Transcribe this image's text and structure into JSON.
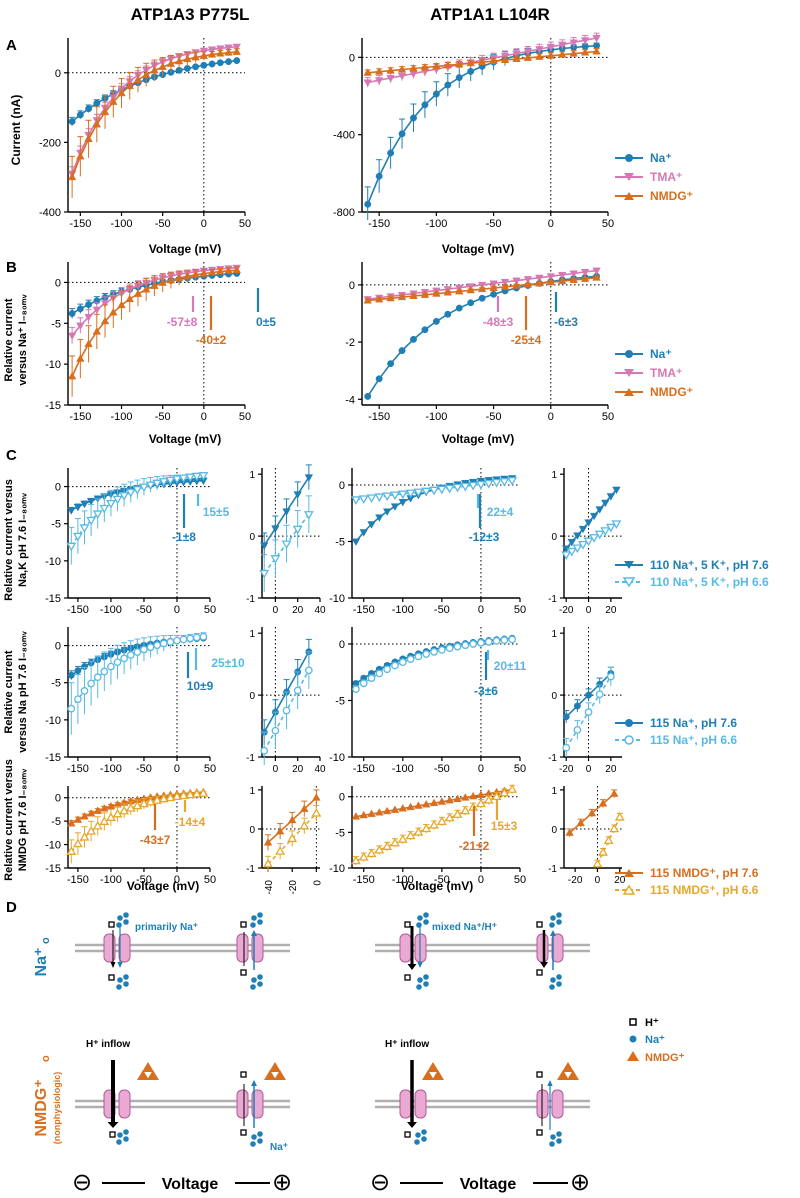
{
  "colors": {
    "na": "#1f7fb5",
    "na_light": "#58b9e3",
    "tma": "#d678b4",
    "nmdg": "#d86f1f",
    "nmdg_light": "#e6a82a",
    "axis": "#000000",
    "membrane": "#b0b0b0",
    "channel": "#e9a9d2"
  },
  "headers": {
    "left": "ATP1A3 P775L",
    "right": "ATP1A1 L104R"
  },
  "panels": {
    "A": "A",
    "B": "B",
    "C": "C",
    "D": "D"
  },
  "ylabels": {
    "A": "Current (nA)",
    "B": [
      "Relative current",
      "versus Na⁺ I₋₈₀ₘᵥ"
    ],
    "C1": [
      "Relative current versus",
      "Na,K pH 7.6 I₋₈₀ₘᵥ"
    ],
    "C2": [
      "Relative current",
      "versus Na pH 7.6 I₋₈₀ₘᵥ"
    ],
    "C3": [
      "Relative current versus",
      "NMDG pH 7.6 I₋₈₀ₘᵥ"
    ]
  },
  "xlabel": "Voltage (mV)",
  "legends": {
    "A": [
      "Na⁺",
      "TMA⁺",
      "NMDG⁺"
    ],
    "C1": [
      "110 Na⁺, 5 K⁺, pH 7.6",
      "110 Na⁺, 5 K⁺, pH 6.6"
    ],
    "C2": [
      "115 Na⁺, pH 7.6",
      "115 Na⁺, pH 6.6"
    ],
    "C3": [
      "115 NMDG⁺, pH 7.6",
      "115 NMDG⁺, pH 6.6"
    ]
  },
  "annotations": {
    "B_left": [
      "-57±8",
      "-40±2",
      "0±5"
    ],
    "B_right": [
      "-48±3",
      "-25±4",
      "-6±3"
    ],
    "C1_left": [
      "15±5",
      "-1±8"
    ],
    "C1_right": [
      "22±4",
      "-12±3"
    ],
    "C2_left": [
      "25±10",
      "10±9"
    ],
    "C2_right": [
      "20±11",
      "-3±6"
    ],
    "C3_left": [
      "-43±7",
      "-14±4"
    ],
    "C3_right": [
      "-21±2",
      "15±3"
    ]
  },
  "diagram": {
    "na_label": "Na⁺",
    "na_sub": "o",
    "nmdg_label": "NMDG⁺",
    "nmdg_sub": "o",
    "nonphys": "(nonphysiologic)",
    "primarily": "primarily Na⁺",
    "mixed": "mixed Na⁺/H⁺",
    "h_inflow": "H⁺ inflow",
    "na_small": "Na⁺",
    "voltage": "Voltage",
    "minus": "⊖",
    "plus": "⊕",
    "legend_h": "H⁺",
    "legend_na": "Na⁺",
    "legend_nmdg": "NMDG⁺"
  },
  "chart_data": [
    {
      "id": "A_left",
      "type": "line",
      "xlabel": "Voltage (mV)",
      "ylabel": "Current (nA)",
      "xlim": [
        -165,
        50
      ],
      "ylim": [
        -400,
        100
      ],
      "xticks": [
        -150,
        -100,
        -50,
        0,
        50
      ],
      "yticks": [
        -400,
        -200,
        0
      ],
      "series": [
        {
          "name": "Na⁺",
          "color": "na",
          "marker": "circle",
          "x0": -160,
          "dx": 10,
          "n": 21,
          "shape": "exp",
          "y0": -140,
          "y1": 35,
          "k": 2.0,
          "err": 12
        },
        {
          "name": "TMA⁺",
          "color": "tma",
          "marker": "tri-down",
          "x0": -160,
          "dx": 10,
          "n": 21,
          "shape": "exp",
          "y0": -290,
          "y1": 75,
          "k": 3.5,
          "err": 20
        },
        {
          "name": "NMDG⁺",
          "color": "nmdg",
          "marker": "tri-up",
          "x0": -160,
          "dx": 10,
          "n": 21,
          "shape": "exp",
          "y0": -300,
          "y1": 60,
          "k": 3.5,
          "err": 60
        }
      ]
    },
    {
      "id": "A_right",
      "type": "line",
      "xlabel": "Voltage (mV)",
      "ylabel": "",
      "xlim": [
        -165,
        50
      ],
      "ylim": [
        -800,
        100
      ],
      "xticks": [
        -150,
        -100,
        -50,
        0,
        50
      ],
      "yticks": [
        -800,
        -400,
        0
      ],
      "series": [
        {
          "name": "Na⁺",
          "color": "na",
          "marker": "circle",
          "x0": -160,
          "dx": 10,
          "n": 21,
          "shape": "exp",
          "y0": -760,
          "y1": 60,
          "k": 3.8,
          "err": 90
        },
        {
          "name": "TMA⁺",
          "color": "tma",
          "marker": "tri-down",
          "x0": -160,
          "dx": 10,
          "n": 21,
          "shape": "lin",
          "y0": -130,
          "y1": 100,
          "err": 25
        },
        {
          "name": "NMDG⁺",
          "color": "nmdg",
          "marker": "tri-up",
          "x0": -160,
          "dx": 10,
          "n": 21,
          "shape": "lin",
          "y0": -80,
          "y1": 30,
          "err": 15
        }
      ]
    },
    {
      "id": "B_left",
      "type": "line",
      "xlabel": "Voltage (mV)",
      "ylabel": "Relative current versus Na⁺ I-80mV",
      "xlim": [
        -165,
        50
      ],
      "ylim": [
        -15,
        2.5
      ],
      "xticks": [
        -150,
        -100,
        -50,
        0,
        50
      ],
      "yticks": [
        -15,
        -10,
        -5,
        0
      ],
      "series": [
        {
          "name": "Na⁺",
          "color": "na",
          "marker": "circle",
          "x0": -160,
          "dx": 10,
          "n": 21,
          "shape": "exp",
          "y0": -3.8,
          "y1": 1.1,
          "k": 2.2,
          "err": 0.6
        },
        {
          "name": "TMA⁺",
          "color": "tma",
          "marker": "tri-down",
          "x0": -160,
          "dx": 10,
          "n": 21,
          "shape": "exp",
          "y0": -6.5,
          "y1": 1.8,
          "k": 3,
          "err": 1
        },
        {
          "name": "NMDG⁺",
          "color": "nmdg",
          "marker": "tri-up",
          "x0": -160,
          "dx": 10,
          "n": 21,
          "shape": "exp",
          "y0": -11.5,
          "y1": 1.5,
          "k": 3.5,
          "err": 2.5
        }
      ]
    },
    {
      "id": "B_right",
      "type": "line",
      "xlabel": "Voltage (mV)",
      "ylabel": "",
      "xlim": [
        -165,
        50
      ],
      "ylim": [
        -4.2,
        0.8
      ],
      "xticks": [
        -150,
        -100,
        -50,
        0,
        50
      ],
      "yticks": [
        -4,
        -2,
        0
      ],
      "series": [
        {
          "name": "Na⁺",
          "color": "na",
          "marker": "circle",
          "x0": -160,
          "dx": 10,
          "n": 21,
          "shape": "exp",
          "y0": -3.9,
          "y1": 0.3,
          "k": 3,
          "err": 0.05
        },
        {
          "name": "TMA⁺",
          "color": "tma",
          "marker": "tri-down",
          "x0": -160,
          "dx": 10,
          "n": 21,
          "shape": "lin",
          "y0": -0.5,
          "y1": 0.5,
          "err": 0.08
        },
        {
          "name": "NMDG⁺",
          "color": "nmdg",
          "marker": "tri-up",
          "x0": -160,
          "dx": 10,
          "n": 21,
          "shape": "lin",
          "y0": -0.55,
          "y1": 0.25,
          "err": 0.05
        }
      ]
    },
    {
      "id": "C1_left",
      "type": "line",
      "xlim": [
        -165,
        50
      ],
      "ylim": [
        -15,
        2.5
      ],
      "xticks": [
        -150,
        -100,
        -50,
        0,
        50
      ],
      "yticks": [
        -15,
        -10,
        -5,
        0
      ],
      "series": [
        {
          "name": "pH 7.6",
          "color": "na",
          "marker": "tri-down",
          "x0": -160,
          "dx": 10,
          "n": 21,
          "shape": "exp",
          "y0": -3.2,
          "y1": 0.8,
          "k": 2.2,
          "err": 0.4
        },
        {
          "name": "pH 6.6",
          "color": "na_light",
          "marker": "tri-down-open",
          "x0": -160,
          "dx": 10,
          "n": 21,
          "shape": "exp",
          "y0": -8,
          "y1": 1.5,
          "k": 2.8,
          "err": 2.5
        }
      ]
    },
    {
      "id": "C1_left_zoom",
      "type": "line",
      "xlim": [
        -12,
        40
      ],
      "ylim": [
        -1,
        1.1
      ],
      "xticks": [
        0,
        20,
        40
      ],
      "yticks": [
        -1,
        0,
        1
      ],
      "series": [
        {
          "name": "pH 7.6",
          "color": "na",
          "marker": "tri-down",
          "x0": -10,
          "dx": 10,
          "n": 5,
          "shape": "lin",
          "y0": -0.15,
          "y1": 0.95,
          "err": 0.2
        },
        {
          "name": "pH 6.6",
          "color": "na_light",
          "marker": "tri-down-open",
          "x0": -10,
          "dx": 10,
          "n": 5,
          "shape": "lin",
          "y0": -0.6,
          "y1": 0.35,
          "err": 0.3
        }
      ]
    },
    {
      "id": "C1_right",
      "type": "line",
      "xlim": [
        -165,
        50
      ],
      "ylim": [
        -10,
        1.5
      ],
      "xticks": [
        -150,
        -100,
        -50,
        0,
        50
      ],
      "yticks": [
        -10,
        -5,
        0
      ],
      "series": [
        {
          "name": "pH 7.6",
          "color": "na",
          "marker": "tri-down",
          "x0": -160,
          "dx": 10,
          "n": 21,
          "shape": "exp",
          "y0": -5,
          "y1": 0.6,
          "k": 3,
          "err": 0.05
        },
        {
          "name": "pH 6.6",
          "color": "na_light",
          "marker": "tri-down-open",
          "x0": -160,
          "dx": 10,
          "n": 21,
          "shape": "lin",
          "y0": -1.3,
          "y1": 0.4,
          "err": 0.1
        }
      ]
    },
    {
      "id": "C1_right_zoom",
      "type": "line",
      "xlim": [
        -22,
        30
      ],
      "ylim": [
        -1,
        1.1
      ],
      "xticks": [
        -20,
        0,
        20
      ],
      "yticks": [
        -1,
        0,
        1
      ],
      "series": [
        {
          "name": "pH 7.6",
          "color": "na",
          "marker": "tri-down",
          "x0": -20,
          "dx": 5,
          "n": 10,
          "shape": "lin",
          "y0": -0.2,
          "y1": 0.75,
          "err": 0.03
        },
        {
          "name": "pH 6.6",
          "color": "na_light",
          "marker": "tri-down-open",
          "x0": -20,
          "dx": 5,
          "n": 10,
          "shape": "lin",
          "y0": -0.3,
          "y1": 0.2,
          "err": 0.03
        }
      ]
    },
    {
      "id": "C2_left",
      "type": "line",
      "xlim": [
        -165,
        50
      ],
      "ylim": [
        -15,
        2.5
      ],
      "xticks": [
        -150,
        -100,
        -50,
        0,
        50
      ],
      "yticks": [
        -15,
        -10,
        -5,
        0
      ],
      "series": [
        {
          "name": "pH 7.6",
          "color": "na",
          "marker": "circle",
          "x0": -160,
          "dx": 10,
          "n": 21,
          "shape": "exp",
          "y0": -4,
          "y1": 1,
          "k": 2.4,
          "err": 0.6
        },
        {
          "name": "pH 6.6",
          "color": "na_light",
          "marker": "circle-open",
          "x0": -160,
          "dx": 10,
          "n": 21,
          "shape": "exp",
          "y0": -8.5,
          "y1": 1.2,
          "k": 2.6,
          "err": 3.5
        }
      ]
    },
    {
      "id": "C2_left_zoom",
      "type": "line",
      "xlim": [
        -12,
        40
      ],
      "ylim": [
        -1,
        1.1
      ],
      "xticks": [
        0,
        20,
        40
      ],
      "yticks": [
        -1,
        0,
        1
      ],
      "series": [
        {
          "name": "pH 7.6",
          "color": "na",
          "marker": "circle",
          "x0": -10,
          "dx": 10,
          "n": 5,
          "shape": "lin",
          "y0": -0.6,
          "y1": 0.7,
          "err": 0.2
        },
        {
          "name": "pH 6.6",
          "color": "na_light",
          "marker": "circle-open",
          "x0": -10,
          "dx": 10,
          "n": 5,
          "shape": "lin",
          "y0": -0.9,
          "y1": 0.4,
          "err": 0.3
        }
      ]
    },
    {
      "id": "C2_right",
      "type": "line",
      "xlim": [
        -165,
        50
      ],
      "ylim": [
        -10,
        1.5
      ],
      "xticks": [
        -150,
        -100,
        -50,
        0,
        50
      ],
      "yticks": [
        -10,
        -5,
        0
      ],
      "series": [
        {
          "name": "pH 7.6",
          "color": "na",
          "marker": "circle",
          "x0": -160,
          "dx": 10,
          "n": 21,
          "shape": "exp",
          "y0": -3.5,
          "y1": 0.5,
          "k": 2.2,
          "err": 0.2
        },
        {
          "name": "pH 6.6",
          "color": "na_light",
          "marker": "circle-open",
          "x0": -160,
          "dx": 10,
          "n": 21,
          "shape": "exp",
          "y0": -4,
          "y1": 0.4,
          "k": 2.2,
          "err": 0.3
        }
      ]
    },
    {
      "id": "C2_right_zoom",
      "type": "line",
      "xlim": [
        -22,
        30
      ],
      "ylim": [
        -1,
        1.1
      ],
      "xticks": [
        -20,
        0,
        20
      ],
      "yticks": [
        -1,
        0,
        1
      ],
      "series": [
        {
          "name": "pH 7.6",
          "color": "na",
          "marker": "circle",
          "x0": -20,
          "dx": 10,
          "n": 5,
          "shape": "lin",
          "y0": -0.35,
          "y1": 0.35,
          "err": 0.1
        },
        {
          "name": "pH 6.6",
          "color": "na_light",
          "marker": "circle-open",
          "x0": -20,
          "dx": 10,
          "n": 5,
          "shape": "lin",
          "y0": -0.85,
          "y1": 0.3,
          "err": 0.15
        }
      ]
    },
    {
      "id": "C3_left",
      "type": "line",
      "xlim": [
        -165,
        50
      ],
      "ylim": [
        -15,
        2.5
      ],
      "xticks": [
        -150,
        -100,
        -50,
        0,
        50
      ],
      "yticks": [
        -15,
        -10,
        -5,
        0
      ],
      "series": [
        {
          "name": "pH 7.6",
          "color": "nmdg",
          "marker": "tri-up",
          "x0": -160,
          "dx": 10,
          "n": 21,
          "shape": "exp",
          "y0": -5.5,
          "y1": 1.2,
          "k": 2.2,
          "err": 0.6
        },
        {
          "name": "pH 6.6",
          "color": "nmdg_light",
          "marker": "tri-up-open",
          "x0": -160,
          "dx": 10,
          "n": 21,
          "shape": "exp",
          "y0": -11.5,
          "y1": 0.9,
          "k": 2.6,
          "err": 2.5
        }
      ]
    },
    {
      "id": "C3_left_zoom",
      "type": "line",
      "xlim": [
        -45,
        3
      ],
      "ylim": [
        -1,
        1.1
      ],
      "xticks": [
        -40,
        -20,
        0
      ],
      "yticks": [
        -1,
        0,
        1
      ],
      "series": [
        {
          "name": "pH 7.6",
          "color": "nmdg",
          "marker": "tri-up",
          "x0": -40,
          "dx": 10,
          "n": 5,
          "shape": "lin",
          "y0": -0.35,
          "y1": 0.8,
          "err": 0.2
        },
        {
          "name": "pH 6.6",
          "color": "nmdg_light",
          "marker": "tri-up-open",
          "x0": -40,
          "dx": 10,
          "n": 5,
          "shape": "lin",
          "y0": -0.9,
          "y1": 0.4,
          "err": 0.2
        }
      ]
    },
    {
      "id": "C3_right",
      "type": "line",
      "xlim": [
        -165,
        50
      ],
      "ylim": [
        -10,
        1.5
      ],
      "xticks": [
        -150,
        -100,
        -50,
        0,
        50
      ],
      "yticks": [
        -10,
        -5,
        0
      ],
      "series": [
        {
          "name": "pH 7.6",
          "color": "nmdg",
          "marker": "tri-up",
          "x0": -160,
          "dx": 10,
          "n": 21,
          "shape": "lin",
          "y0": -2.8,
          "y1": 1,
          "err": 0.1
        },
        {
          "name": "pH 6.6",
          "color": "nmdg_light",
          "marker": "tri-up-open",
          "x0": -160,
          "dx": 10,
          "n": 21,
          "shape": "lin",
          "y0": -9,
          "y1": 1,
          "err": 0.6
        }
      ]
    },
    {
      "id": "C3_right_zoom",
      "type": "line",
      "xlim": [
        -30,
        22
      ],
      "ylim": [
        -1,
        1.1
      ],
      "xticks": [
        -20,
        0,
        20
      ],
      "yticks": [
        -1,
        0,
        1
      ],
      "series": [
        {
          "name": "pH 7.6",
          "color": "nmdg",
          "marker": "tri-up",
          "x0": -25,
          "dx": 10,
          "n": 5,
          "shape": "lin",
          "y0": -0.1,
          "y1": 0.9,
          "err": 0.1
        },
        {
          "name": "pH 6.6",
          "color": "nmdg_light",
          "marker": "tri-up-open",
          "x0": 0,
          "dx": 5,
          "n": 5,
          "shape": "lin",
          "y0": -0.9,
          "y1": 0.3,
          "err": 0.1
        }
      ]
    }
  ]
}
